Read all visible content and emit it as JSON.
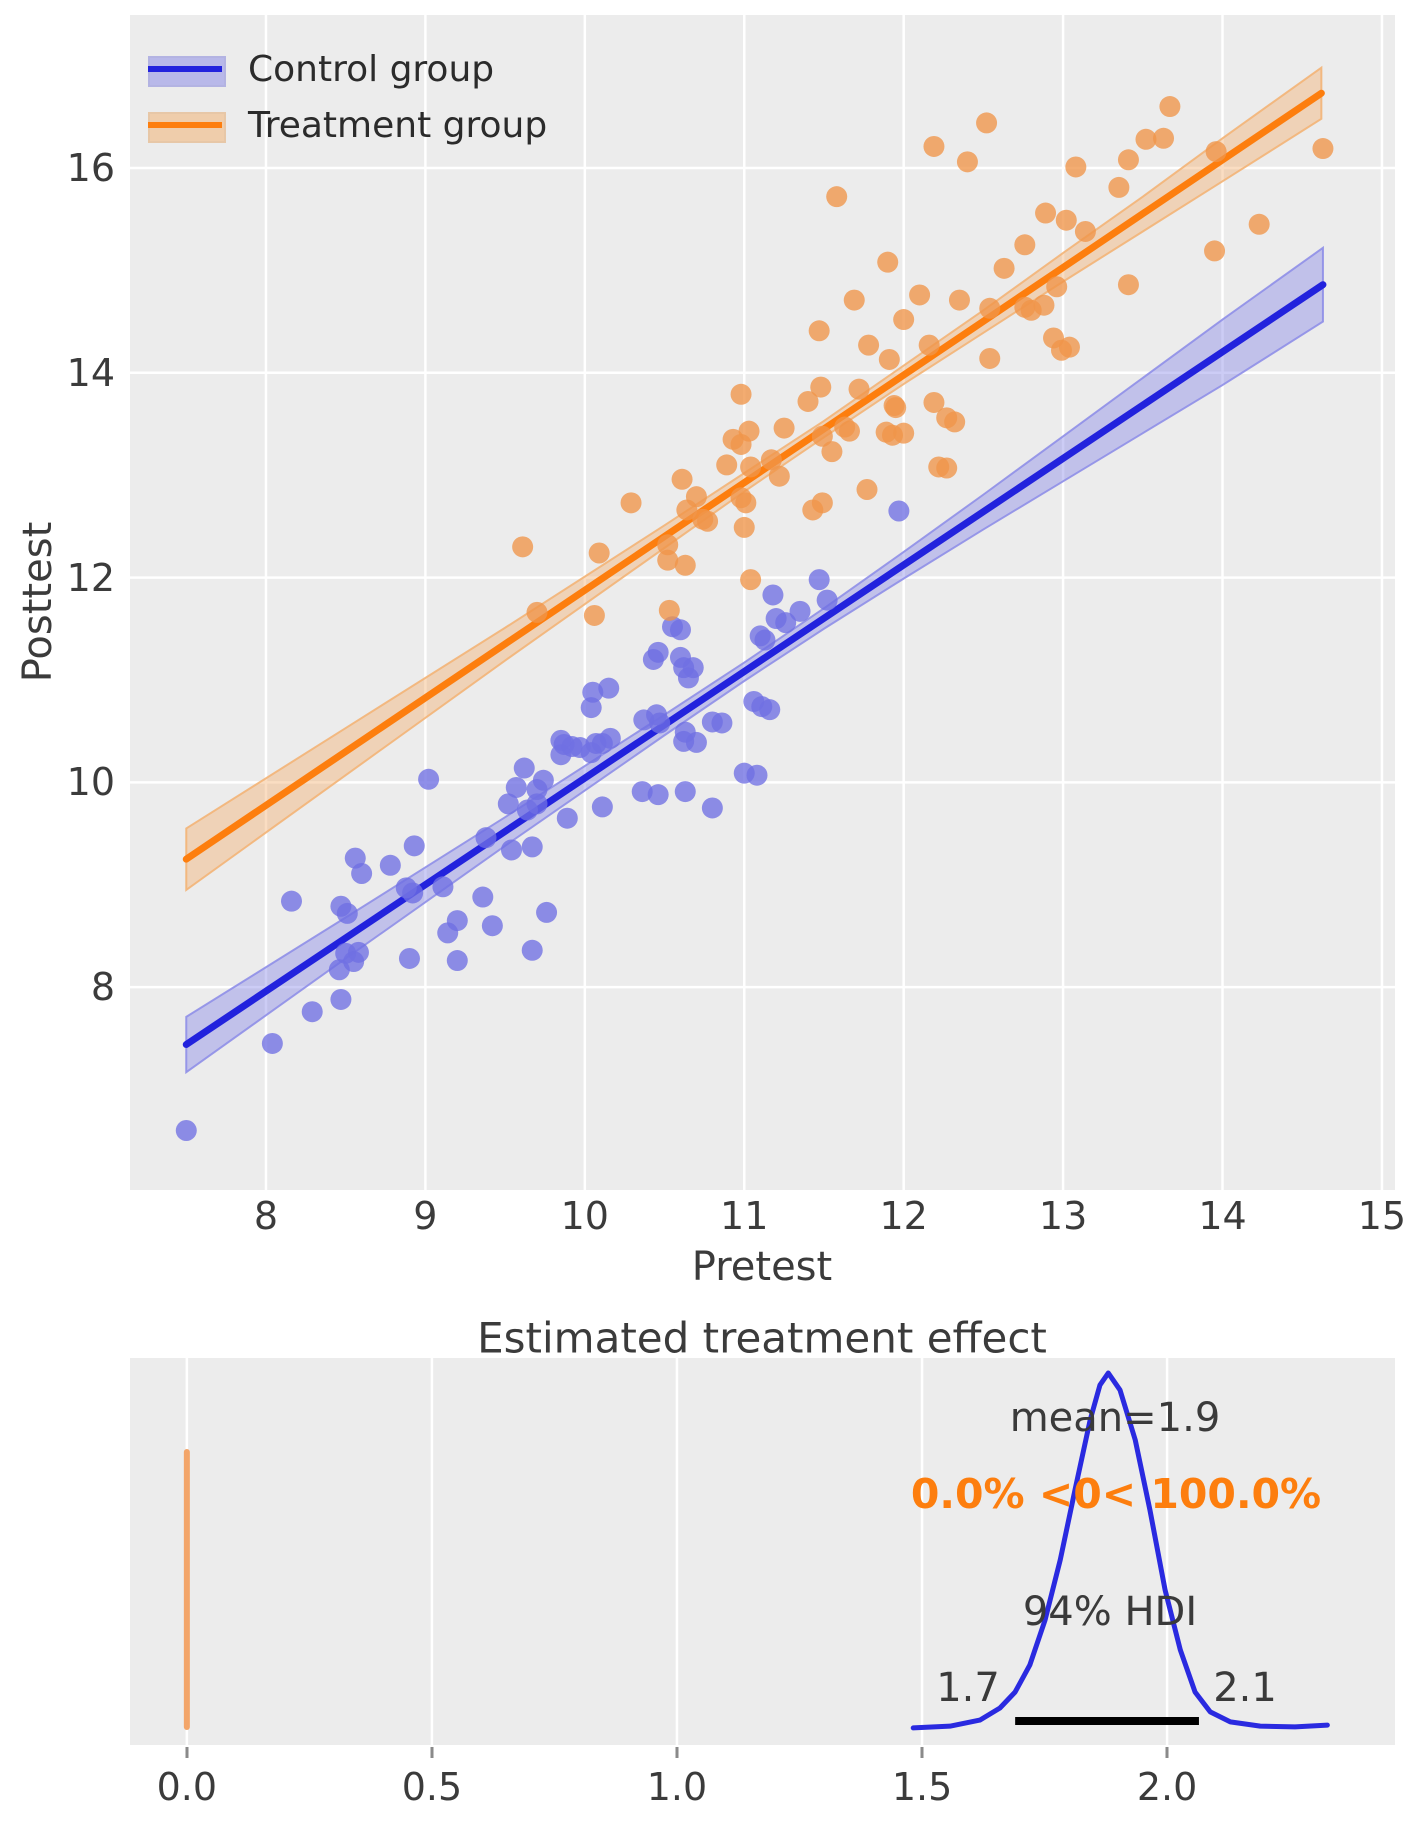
{
  "figure": {
    "background": "#ffffff",
    "plot_background": "#ececec",
    "grid_color": "#ffffff",
    "text_color": "#3b3b3b"
  },
  "chart_data": [
    {
      "type": "scatter",
      "xlabel": "Pretest",
      "ylabel": "Posttest",
      "xlim": [
        7.147,
        15.082
      ],
      "ylim": [
        6.019,
        17.494
      ],
      "x_ticks": [
        8,
        9,
        10,
        11,
        12,
        13,
        14,
        15
      ],
      "y_ticks": [
        8,
        10,
        12,
        14,
        16
      ],
      "grid": true,
      "legend_position": "upper left",
      "series": [
        {
          "name": "Control group",
          "line_color": "#2222dd",
          "point_color": "#6f6fe3",
          "band_fill": "#8f8fe8",
          "line": {
            "x": [
              7.5,
              14.63
            ],
            "y": [
              7.44,
              14.86
            ]
          },
          "band": {
            "x": [
              7.5,
              8.5,
              9.5,
              10.5,
              11.0,
              11.5,
              12.0,
              12.5,
              13.0,
              13.5,
              14.0,
              14.63
            ],
            "upper": [
              7.71,
              8.68,
              9.66,
              10.66,
              11.17,
              11.7,
              12.25,
              12.81,
              13.38,
              13.95,
              14.52,
              15.22
            ],
            "lower": [
              7.17,
              8.28,
              9.38,
              10.46,
              10.99,
              11.5,
              11.99,
              12.47,
              12.94,
              13.41,
              13.88,
              14.5
            ]
          },
          "points": [
            [
              7.5,
              6.6
            ],
            [
              8.04,
              7.45
            ],
            [
              8.29,
              7.76
            ],
            [
              8.47,
              7.88
            ],
            [
              8.16,
              8.84
            ],
            [
              8.47,
              8.79
            ],
            [
              8.51,
              8.72
            ],
            [
              8.5,
              8.33
            ],
            [
              8.46,
              8.17
            ],
            [
              8.58,
              8.34
            ],
            [
              8.55,
              8.25
            ],
            [
              8.56,
              9.26
            ],
            [
              8.6,
              9.11
            ],
            [
              8.78,
              9.19
            ],
            [
              8.88,
              8.97
            ],
            [
              8.92,
              8.92
            ],
            [
              8.93,
              9.38
            ],
            [
              8.9,
              8.28
            ],
            [
              9.02,
              10.03
            ],
            [
              9.11,
              8.98
            ],
            [
              9.14,
              8.53
            ],
            [
              9.2,
              8.65
            ],
            [
              9.2,
              8.26
            ],
            [
              9.36,
              8.88
            ],
            [
              9.42,
              8.6
            ],
            [
              9.38,
              9.46
            ],
            [
              9.52,
              9.79
            ],
            [
              9.54,
              9.34
            ],
            [
              9.57,
              9.95
            ],
            [
              9.62,
              10.14
            ],
            [
              9.64,
              9.73
            ],
            [
              9.7,
              9.93
            ],
            [
              9.7,
              9.79
            ],
            [
              9.74,
              10.02
            ],
            [
              9.67,
              9.37
            ],
            [
              9.67,
              8.36
            ],
            [
              9.76,
              8.73
            ],
            [
              9.85,
              10.27
            ],
            [
              9.89,
              9.65
            ],
            [
              9.85,
              10.41
            ],
            [
              9.87,
              10.37
            ],
            [
              9.92,
              10.35
            ],
            [
              9.97,
              10.34
            ],
            [
              10.11,
              10.38
            ],
            [
              10.15,
              10.92
            ],
            [
              10.05,
              10.88
            ],
            [
              10.04,
              10.73
            ],
            [
              10.37,
              10.61
            ],
            [
              10.45,
              10.66
            ],
            [
              10.47,
              10.58
            ],
            [
              10.62,
              10.4
            ],
            [
              10.7,
              10.39
            ],
            [
              10.63,
              10.49
            ],
            [
              10.8,
              10.59
            ],
            [
              10.86,
              10.58
            ],
            [
              10.46,
              11.27
            ],
            [
              10.43,
              11.2
            ],
            [
              10.6,
              11.22
            ],
            [
              10.62,
              11.12
            ],
            [
              10.65,
              11.02
            ],
            [
              10.68,
              11.12
            ],
            [
              10.55,
              11.52
            ],
            [
              10.6,
              11.49
            ],
            [
              11.06,
              10.79
            ],
            [
              11.11,
              10.74
            ],
            [
              11.16,
              10.71
            ],
            [
              11.1,
              11.43
            ],
            [
              11.13,
              11.39
            ],
            [
              11.18,
              11.83
            ],
            [
              11.97,
              12.65
            ],
            [
              11.47,
              11.98
            ],
            [
              10.36,
              9.91
            ],
            [
              10.46,
              9.88
            ],
            [
              10.63,
              9.91
            ],
            [
              10.8,
              9.75
            ],
            [
              10.11,
              9.76
            ],
            [
              11.0,
              10.09
            ],
            [
              11.08,
              10.07
            ],
            [
              10.07,
              10.38
            ],
            [
              10.16,
              10.43
            ],
            [
              11.2,
              11.6
            ],
            [
              11.26,
              11.56
            ],
            [
              11.35,
              11.67
            ],
            [
              11.52,
              11.78
            ],
            [
              10.04,
              10.29
            ]
          ]
        },
        {
          "name": "Treatment group",
          "line_color": "#fd7e0e",
          "point_color": "#ef9549",
          "band_fill": "#f3b477",
          "line": {
            "x": [
              7.5,
              14.62
            ],
            "y": [
              9.25,
              16.73
            ]
          },
          "band": {
            "x": [
              7.5,
              8.5,
              9.5,
              10.5,
              11.0,
              11.5,
              12.0,
              12.5,
              13.0,
              13.5,
              14.0,
              14.62
            ],
            "upper": [
              9.55,
              10.53,
              11.51,
              12.51,
              13.02,
              13.53,
              14.07,
              14.61,
              15.17,
              15.72,
              16.29,
              16.98
            ],
            "lower": [
              8.95,
              10.07,
              11.19,
              12.29,
              12.84,
              13.37,
              13.89,
              14.39,
              14.89,
              15.38,
              15.87,
              16.48
            ]
          },
          "points": [
            [
              9.61,
              12.3
            ],
            [
              9.7,
              11.66
            ],
            [
              10.09,
              12.24
            ],
            [
              10.06,
              11.63
            ],
            [
              10.29,
              12.73
            ],
            [
              10.52,
              12.32
            ],
            [
              10.52,
              12.17
            ],
            [
              10.61,
              12.96
            ],
            [
              10.64,
              12.66
            ],
            [
              10.7,
              12.79
            ],
            [
              10.74,
              12.57
            ],
            [
              10.77,
              12.55
            ],
            [
              10.63,
              12.12
            ],
            [
              10.53,
              11.68
            ],
            [
              11.0,
              12.49
            ],
            [
              11.04,
              11.98
            ],
            [
              10.89,
              13.1
            ],
            [
              10.93,
              13.35
            ],
            [
              10.98,
              13.3
            ],
            [
              10.98,
              13.79
            ],
            [
              11.03,
              13.43
            ],
            [
              10.98,
              12.78
            ],
            [
              11.01,
              12.73
            ],
            [
              11.04,
              13.08
            ],
            [
              11.17,
              13.15
            ],
            [
              11.22,
              12.99
            ],
            [
              11.25,
              13.46
            ],
            [
              11.4,
              13.72
            ],
            [
              11.48,
              13.86
            ],
            [
              11.49,
              13.38
            ],
            [
              11.55,
              13.23
            ],
            [
              11.63,
              13.47
            ],
            [
              11.66,
              13.43
            ],
            [
              11.72,
              13.84
            ],
            [
              11.77,
              12.86
            ],
            [
              11.43,
              12.66
            ],
            [
              11.49,
              12.73
            ],
            [
              11.89,
              13.42
            ],
            [
              11.93,
              13.39
            ],
            [
              11.94,
              13.68
            ],
            [
              11.95,
              13.66
            ],
            [
              12.0,
              13.41
            ],
            [
              12.19,
              13.71
            ],
            [
              12.27,
              13.56
            ],
            [
              12.32,
              13.52
            ],
            [
              12.22,
              13.08
            ],
            [
              12.27,
              13.07
            ],
            [
              11.91,
              14.13
            ],
            [
              12.54,
              14.14
            ],
            [
              12.54,
              14.63
            ],
            [
              12.63,
              15.02
            ],
            [
              12.76,
              15.25
            ],
            [
              12.76,
              14.64
            ],
            [
              12.8,
              14.61
            ],
            [
              12.88,
              14.66
            ],
            [
              12.94,
              14.34
            ],
            [
              12.96,
              14.84
            ],
            [
              12.99,
              14.22
            ],
            [
              13.04,
              14.25
            ],
            [
              13.02,
              15.49
            ],
            [
              13.14,
              15.38
            ],
            [
              13.08,
              16.01
            ],
            [
              13.35,
              15.81
            ],
            [
              13.41,
              16.08
            ],
            [
              13.41,
              14.86
            ],
            [
              13.52,
              16.28
            ],
            [
              13.63,
              16.29
            ],
            [
              13.67,
              16.6
            ],
            [
              13.96,
              16.16
            ],
            [
              13.95,
              15.19
            ],
            [
              14.63,
              16.19
            ],
            [
              14.23,
              15.45
            ],
            [
              12.89,
              15.56
            ],
            [
              11.58,
              15.72
            ],
            [
              12.19,
              16.21
            ],
            [
              12.4,
              16.06
            ],
            [
              12.52,
              16.44
            ],
            [
              11.9,
              15.08
            ],
            [
              12.1,
              14.76
            ],
            [
              11.69,
              14.71
            ],
            [
              12.0,
              14.52
            ],
            [
              11.78,
              14.27
            ],
            [
              12.35,
              14.71
            ],
            [
              12.16,
              14.27
            ],
            [
              11.47,
              14.41
            ]
          ]
        }
      ]
    },
    {
      "type": "kde",
      "title": "Estimated treatment effect",
      "xlim": [
        -0.116,
        2.465
      ],
      "x_ticks": [
        "0.0",
        "0.5",
        "1.0",
        "1.5",
        "2.0"
      ],
      "x_tick_values": [
        0,
        0.5,
        1,
        1.5,
        2
      ],
      "mean": 1.9,
      "mean_label": "mean=1.9",
      "prob_label": "0.0% <0< 100.0%",
      "hdi_label": "94% HDI",
      "hdi_interval": [
        1.7,
        2.1
      ],
      "hdi_low_label": "1.7",
      "hdi_high_label": "2.1",
      "hdi_bar_x": [
        1.69,
        2.065
      ],
      "ref_value": 0,
      "curve": {
        "x": [
          1.482,
          1.557,
          1.618,
          1.659,
          1.69,
          1.72,
          1.751,
          1.782,
          1.812,
          1.843,
          1.863,
          1.88,
          1.904,
          1.935,
          1.965,
          1.996,
          2.027,
          2.057,
          2.088,
          2.129,
          2.19,
          2.261,
          2.327
        ],
        "density": [
          0.003,
          0.008,
          0.025,
          0.059,
          0.104,
          0.18,
          0.306,
          0.475,
          0.671,
          0.868,
          0.966,
          1.0,
          0.952,
          0.812,
          0.615,
          0.39,
          0.222,
          0.104,
          0.048,
          0.02,
          0.008,
          0.006,
          0.011
        ]
      },
      "colors": {
        "curve": "#2a2ae0",
        "ref_line": "#f3a569",
        "hdi_bar": "#000000",
        "prob_text": "#fd7e0e"
      }
    }
  ]
}
